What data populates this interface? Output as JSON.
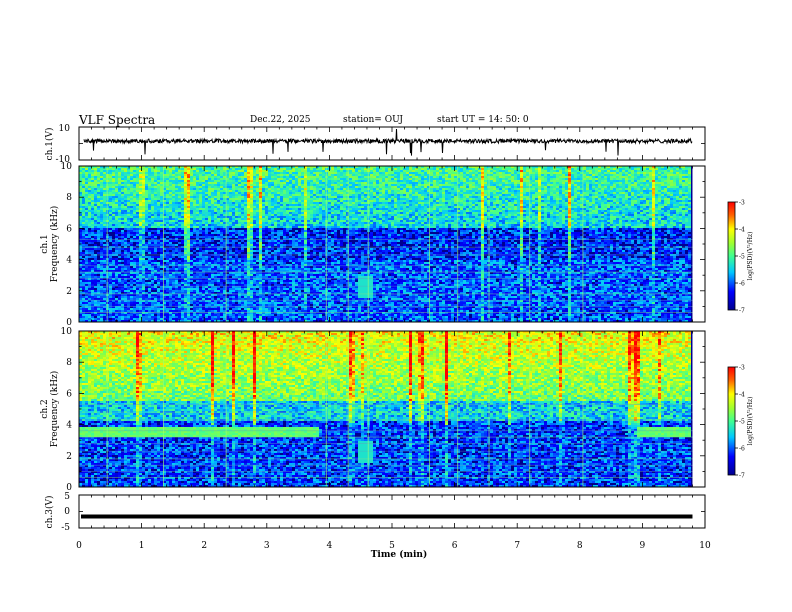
{
  "header": {
    "title": "VLF Spectra",
    "date": "Dec.22, 2025",
    "station": "station= OUJ",
    "start": "start  UT =   14: 50: 0"
  },
  "chart_data": [
    {
      "type": "line",
      "panel": "ch1-waveform",
      "ylabel": "ch.1(V)",
      "ylim": [
        -10,
        10
      ],
      "yticks": [
        "10",
        "-10"
      ],
      "xlim": [
        0,
        10
      ],
      "color": "#000000"
    },
    {
      "type": "heatmap",
      "panel": "ch1-spectrogram",
      "ylabel": "ch.1\nFrequency (kHz)",
      "ylabel_top": "ch.1",
      "ylabel_bottom": "Frequency (kHz)",
      "ylim": [
        0,
        10
      ],
      "yticks": [
        "0",
        "2",
        "4",
        "6",
        "8",
        "10"
      ],
      "xlim": [
        0,
        9.8
      ],
      "colorbar": {
        "min": -7,
        "max": -3,
        "ticks": [
          "-3",
          "-4",
          "-5",
          "-6",
          "-7"
        ],
        "label": "log(PSD)(V²/Hz)"
      }
    },
    {
      "type": "heatmap",
      "panel": "ch2-spectrogram",
      "ylabel_top": "ch.2",
      "ylabel_bottom": "Frequency (kHz)",
      "ylim": [
        0,
        10
      ],
      "yticks": [
        "0",
        "2",
        "4",
        "6",
        "8",
        "10"
      ],
      "xlim": [
        0,
        9.8
      ],
      "band_segments": [
        [
          0,
          3.8,
          3.5
        ],
        [
          8.9,
          9.8,
          3.5
        ]
      ],
      "colorbar": {
        "min": -7,
        "max": -3,
        "ticks": [
          "-3",
          "-4",
          "-5",
          "-6",
          "-7"
        ],
        "label": "log(PSD)(V²/Hz)"
      }
    },
    {
      "type": "line",
      "panel": "ch3-waveform",
      "ylabel": "ch.3(V)",
      "ylim": [
        -5,
        5
      ],
      "yticks": [
        "5",
        "0",
        "-5"
      ],
      "level": -1.5,
      "xlim": [
        0,
        9.8
      ],
      "color": "#000000"
    }
  ],
  "x_axis": {
    "label": "Time (min)",
    "ticks": [
      "0",
      "1",
      "2",
      "3",
      "4",
      "5",
      "6",
      "7",
      "8",
      "9",
      "10"
    ],
    "range": [
      0,
      10
    ]
  }
}
